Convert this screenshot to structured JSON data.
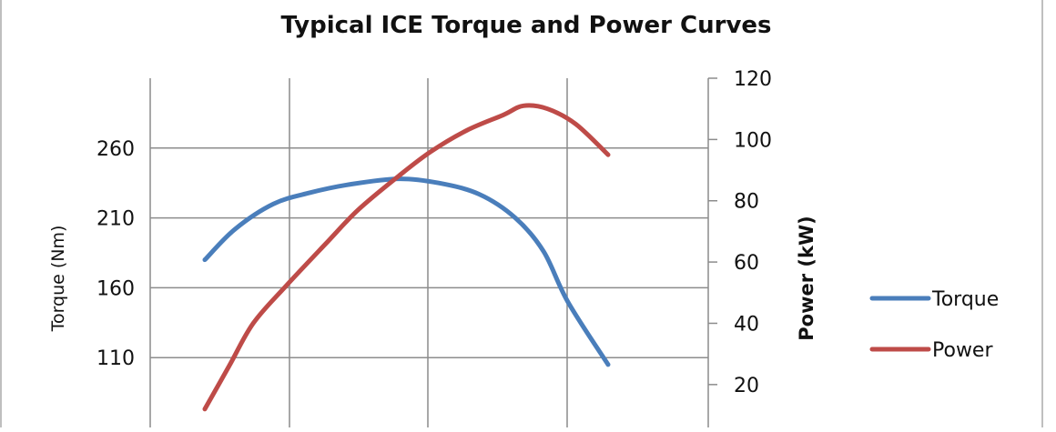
{
  "chart_data": {
    "type": "line",
    "title": "Typical ICE Torque and Power Curves",
    "y_left": {
      "label": "Torque (Nm)",
      "ticks": [
        110,
        160,
        210,
        260
      ],
      "range": [
        60,
        310
      ]
    },
    "y_right": {
      "label": "Power (kW)",
      "ticks": [
        20,
        40,
        60,
        80,
        100,
        120
      ],
      "range": [
        6,
        120
      ]
    },
    "grid": true,
    "legend_position": "right",
    "series": [
      {
        "name": "Torque",
        "axis": "left",
        "color": "#4a7ebb",
        "points": [
          [
            0.0,
            180
          ],
          [
            0.075,
            202
          ],
          [
            0.17,
            220
          ],
          [
            0.26,
            228
          ],
          [
            0.36,
            234
          ],
          [
            0.48,
            238
          ],
          [
            0.58,
            235
          ],
          [
            0.68,
            227
          ],
          [
            0.77,
            210
          ],
          [
            0.84,
            186
          ],
          [
            0.9,
            150
          ],
          [
            1.0,
            105
          ]
        ]
      },
      {
        "name": "Power",
        "axis": "right",
        "color": "#be4b48",
        "points": [
          [
            0.0,
            12
          ],
          [
            0.06,
            26
          ],
          [
            0.12,
            40
          ],
          [
            0.2,
            52
          ],
          [
            0.3,
            66
          ],
          [
            0.38,
            77
          ],
          [
            0.48,
            88
          ],
          [
            0.56,
            96
          ],
          [
            0.65,
            103
          ],
          [
            0.74,
            108
          ],
          [
            0.79,
            111
          ],
          [
            0.85,
            110
          ],
          [
            0.92,
            105
          ],
          [
            1.0,
            95
          ]
        ]
      }
    ]
  }
}
